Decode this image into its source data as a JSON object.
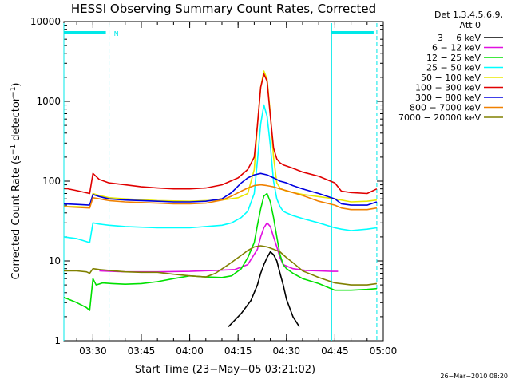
{
  "chart_data": {
    "type": "line",
    "title": "HESSI Observing Summary Count Rates, Corrected",
    "xlabel": "Start Time (23−May−05 03:21:02)",
    "ylabel_main": "Corrected Count Rate (s",
    "ylabel_sup1": "−1",
    "ylabel_mid": " detector",
    "ylabel_sup2": "−1",
    "ylabel_end": ")",
    "yscale": "log",
    "ylim": [
      1,
      10000
    ],
    "xlim_min": [
      201.0,
      300.0
    ],
    "y_ticks": [
      {
        "v": 1,
        "label": "1"
      },
      {
        "v": 10,
        "label": "10"
      },
      {
        "v": 100,
        "label": "100"
      },
      {
        "v": 1000,
        "label": "1000"
      },
      {
        "v": 10000,
        "label": "10000"
      }
    ],
    "x_ticks": [
      {
        "v": 210,
        "label": "03:30"
      },
      {
        "v": 225,
        "label": "03:45"
      },
      {
        "v": 240,
        "label": "04:00"
      },
      {
        "v": 255,
        "label": "04:15"
      },
      {
        "v": 270,
        "label": "04:30"
      },
      {
        "v": 285,
        "label": "04:45"
      },
      {
        "v": 300,
        "label": "05:00"
      }
    ],
    "legend_header_1": "Det 1,3,4,5,6,9,",
    "legend_header_2": "Att 0",
    "night_marker": "N",
    "night_intervals": [
      [
        201.0,
        215.0
      ],
      [
        284.0,
        298.0
      ]
    ],
    "footer_date": "26−Mar−2010 08:20",
    "series": [
      {
        "name": "3 − 6 keV",
        "color": "#000000",
        "xs": [
          252,
          256,
          259,
          261,
          262,
          263,
          264,
          265,
          266,
          267,
          268,
          269,
          270,
          272,
          274
        ],
        "ys": [
          1.5,
          2.2,
          3.2,
          5,
          7,
          9,
          11,
          13,
          12,
          10,
          7,
          5,
          3.3,
          2,
          1.5
        ]
      },
      {
        "name": "6 − 12 keV",
        "color": "#e010e0",
        "xs": [
          212,
          220,
          230,
          240,
          248,
          254,
          258,
          261,
          262,
          263,
          264,
          265,
          266,
          267,
          268,
          269,
          272,
          276,
          280,
          284,
          285,
          286
        ],
        "ys": [
          7.5,
          7.3,
          7.3,
          7.4,
          7.6,
          7.8,
          9,
          14,
          20,
          26,
          30,
          27,
          20,
          15,
          11,
          9,
          8,
          7.6,
          7.5,
          7.4,
          7.4,
          7.4
        ]
      },
      {
        "name": "12 − 25 keV",
        "color": "#00e000",
        "xs": [
          201,
          205,
          208,
          209,
          210,
          211,
          213,
          216,
          220,
          225,
          230,
          235,
          240,
          245,
          250,
          253,
          256,
          258,
          260,
          261,
          262,
          263,
          264,
          265,
          266,
          267,
          268,
          269,
          270,
          272,
          275,
          280,
          285,
          290,
          295,
          298
        ],
        "ys": [
          3.5,
          3,
          2.6,
          2.4,
          6,
          5,
          5.3,
          5.2,
          5.1,
          5.2,
          5.5,
          6,
          6.5,
          6.3,
          6.2,
          6.5,
          8,
          11,
          17,
          28,
          45,
          65,
          70,
          55,
          35,
          20,
          12,
          9,
          8,
          7,
          6,
          5.2,
          4.3,
          4.3,
          4.4,
          4.5
        ]
      },
      {
        "name": "25 − 50 keV",
        "color": "#00ffff",
        "xs": [
          201,
          205,
          209,
          210,
          212,
          215,
          220,
          230,
          240,
          245,
          250,
          253,
          256,
          258,
          260,
          261,
          262,
          263,
          264,
          265,
          266,
          267,
          268,
          269,
          270,
          272,
          275,
          280,
          285,
          287,
          290,
          295,
          298
        ],
        "ys": [
          20,
          19,
          17,
          30,
          29,
          28,
          27,
          26,
          26,
          27,
          28,
          30,
          35,
          42,
          70,
          180,
          520,
          900,
          650,
          280,
          100,
          60,
          48,
          42,
          40,
          37,
          34,
          30,
          26,
          25,
          24,
          25,
          26
        ]
      },
      {
        "name": "50 − 100 keV",
        "color": "#e8e800",
        "xs": [
          201,
          205,
          209,
          210,
          212,
          215,
          220,
          230,
          240,
          245,
          250,
          255,
          258,
          260,
          261,
          262,
          263,
          264,
          265,
          266,
          267,
          268,
          269,
          270,
          272,
          275,
          280,
          285,
          287,
          290,
          295,
          298
        ],
        "ys": [
          48,
          48,
          47,
          70,
          66,
          62,
          60,
          57,
          56,
          57,
          58,
          62,
          70,
          140,
          500,
          1500,
          2400,
          1900,
          700,
          200,
          95,
          82,
          78,
          75,
          72,
          68,
          64,
          60,
          58,
          55,
          56,
          58
        ]
      },
      {
        "name": "100 − 300 keV",
        "color": "#e00000",
        "xs": [
          201,
          205,
          209,
          210,
          212,
          215,
          220,
          225,
          230,
          235,
          240,
          245,
          250,
          255,
          258,
          260,
          261,
          262,
          263,
          264,
          265,
          266,
          267,
          268,
          269,
          270,
          272,
          275,
          280,
          285,
          287,
          290,
          295,
          298
        ],
        "ys": [
          82,
          76,
          70,
          125,
          105,
          95,
          90,
          85,
          82,
          80,
          80,
          82,
          90,
          110,
          140,
          200,
          500,
          1500,
          2200,
          1800,
          650,
          260,
          190,
          170,
          160,
          155,
          145,
          130,
          115,
          95,
          75,
          72,
          70,
          80
        ]
      },
      {
        "name": "300 − 800 keV",
        "color": "#0000e0",
        "xs": [
          201,
          205,
          209,
          210,
          212,
          215,
          220,
          225,
          230,
          235,
          240,
          245,
          250,
          253,
          256,
          258,
          260,
          262,
          264,
          266,
          268,
          270,
          272,
          275,
          280,
          285,
          287,
          290,
          295,
          298
        ],
        "ys": [
          52,
          51,
          50,
          68,
          64,
          60,
          58,
          57,
          56,
          55,
          55,
          56,
          60,
          72,
          95,
          110,
          120,
          125,
          120,
          110,
          100,
          95,
          88,
          80,
          70,
          60,
          52,
          50,
          50,
          55
        ]
      },
      {
        "name": "800 − 7000 keV",
        "color": "#f08000",
        "xs": [
          201,
          205,
          209,
          210,
          212,
          215,
          220,
          225,
          230,
          235,
          240,
          245,
          250,
          253,
          256,
          258,
          260,
          262,
          264,
          266,
          268,
          270,
          272,
          275,
          280,
          285,
          287,
          290,
          295,
          298
        ],
        "ys": [
          48,
          47,
          46,
          62,
          60,
          57,
          55,
          54,
          53,
          52,
          52,
          53,
          58,
          65,
          75,
          82,
          88,
          90,
          88,
          85,
          80,
          76,
          72,
          66,
          56,
          50,
          46,
          44,
          44,
          46
        ]
      },
      {
        "name": "7000 − 20000 keV",
        "color": "#808000",
        "xs": [
          201,
          205,
          208,
          209,
          210,
          212,
          215,
          220,
          225,
          230,
          235,
          240,
          245,
          248,
          252,
          255,
          258,
          260,
          262,
          264,
          266,
          268,
          270,
          272,
          275,
          280,
          285,
          290,
          295,
          298
        ],
        "ys": [
          7.5,
          7.5,
          7.3,
          7,
          8,
          7.8,
          7.6,
          7.3,
          7.2,
          7.2,
          6.8,
          6.5,
          6.3,
          7,
          9,
          11,
          13.5,
          15,
          15.5,
          15,
          14,
          13,
          11,
          9.5,
          7.5,
          6.2,
          5.3,
          5,
          5,
          5.2
        ]
      }
    ]
  }
}
